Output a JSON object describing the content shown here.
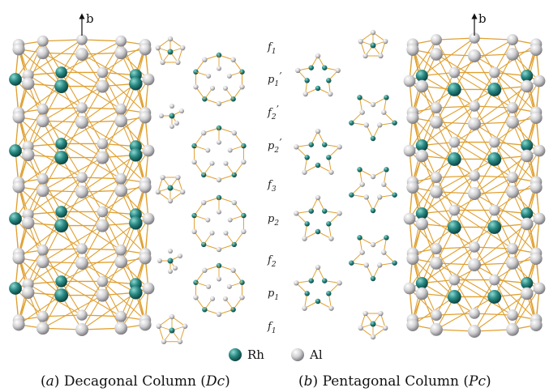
{
  "axis_label": "b",
  "layer_labels": [
    {
      "base": "f",
      "sub": "1",
      "prime": ""
    },
    {
      "base": "p",
      "sub": "1",
      "prime": "’"
    },
    {
      "base": "f",
      "sub": "2",
      "prime": "’"
    },
    {
      "base": "p",
      "sub": "2",
      "prime": "’"
    },
    {
      "base": "f",
      "sub": "3",
      "prime": ""
    },
    {
      "base": "p",
      "sub": "2",
      "prime": ""
    },
    {
      "base": "f",
      "sub": "2",
      "prime": ""
    },
    {
      "base": "p",
      "sub": "1",
      "prime": ""
    },
    {
      "base": "f",
      "sub": "1",
      "prime": ""
    }
  ],
  "legend": [
    {
      "symbol": "Rh",
      "color": "#2a8a84"
    },
    {
      "symbol": "Al",
      "color": "#c9c9cc"
    }
  ],
  "captions": {
    "a": {
      "prefix": "(",
      "letter": "a",
      "mid": ") Decagonal Column (",
      "abbr": "Dc",
      "suffix": ")"
    },
    "b": {
      "prefix": "(",
      "letter": "b",
      "mid": ") Pentagonal Column (",
      "abbr": "Pc",
      "suffix": ")"
    }
  },
  "colors": {
    "bond": "#e0a030",
    "rh": "#2a8a84",
    "al": "#c9c9cc"
  }
}
